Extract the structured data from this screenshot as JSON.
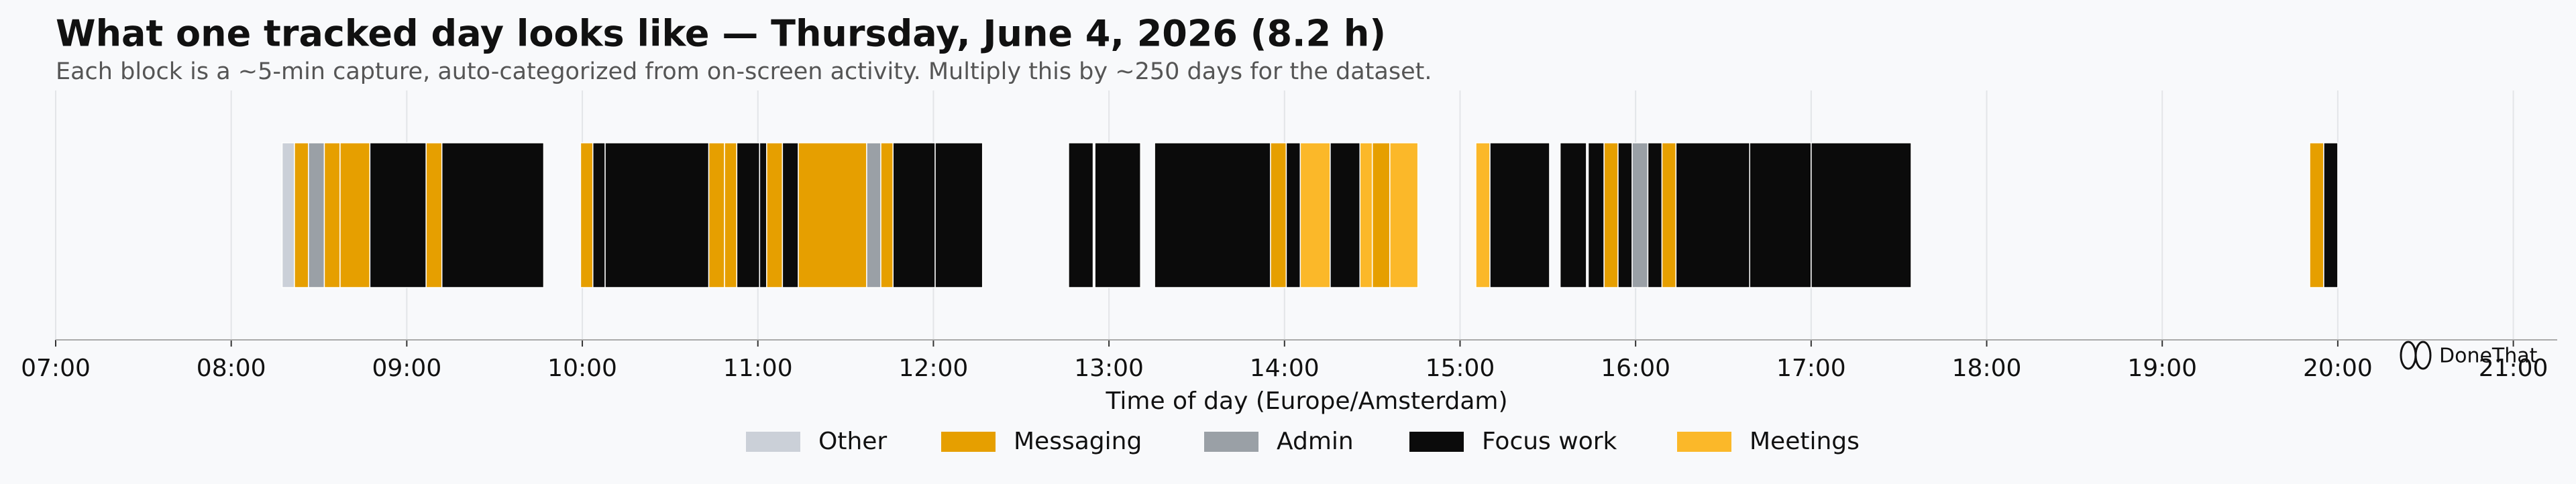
{
  "chart_data": {
    "type": "timeline",
    "title": "What one tracked day looks like — Thursday, June 4, 2026 (8.2 h)",
    "subtitle": "Each block is a ~5-min capture, auto-categorized from on-screen activity. Multiply this by ~250 days for the dataset.",
    "x_label": "Time of day (Europe/Amsterdam)",
    "watermark": "DoneThat",
    "xlim": [
      7,
      21.25
    ],
    "xticks": [
      {
        "value": 7,
        "label": "07:00"
      },
      {
        "value": 8,
        "label": "08:00"
      },
      {
        "value": 9,
        "label": "09:00"
      },
      {
        "value": 10,
        "label": "10:00"
      },
      {
        "value": 11,
        "label": "11:00"
      },
      {
        "value": 12,
        "label": "12:00"
      },
      {
        "value": 13,
        "label": "13:00"
      },
      {
        "value": 14,
        "label": "14:00"
      },
      {
        "value": 15,
        "label": "15:00"
      },
      {
        "value": 16,
        "label": "16:00"
      },
      {
        "value": 17,
        "label": "17:00"
      },
      {
        "value": 18,
        "label": "18:00"
      },
      {
        "value": 19,
        "label": "19:00"
      },
      {
        "value": 20,
        "label": "20:00"
      },
      {
        "value": 21,
        "label": "21:00"
      }
    ],
    "grid": true,
    "legend": "bottom",
    "series": [
      {
        "name": "Other",
        "color": "#cbd0d8",
        "values": [
          [
            8.29,
            8.36
          ]
        ]
      },
      {
        "name": "Messaging",
        "color": "#e69f00",
        "values": [
          [
            8.36,
            8.44
          ],
          [
            8.53,
            8.62
          ],
          [
            8.62,
            8.79
          ],
          [
            9.11,
            9.2
          ],
          [
            9.99,
            10.06
          ],
          [
            10.72,
            10.81
          ],
          [
            10.81,
            10.88
          ],
          [
            11.05,
            11.14
          ],
          [
            11.23,
            11.62
          ],
          [
            11.7,
            11.77
          ],
          [
            13.92,
            14.01
          ],
          [
            14.5,
            14.6
          ],
          [
            15.82,
            15.9
          ],
          [
            16.15,
            16.23
          ],
          [
            19.84,
            19.92
          ]
        ]
      },
      {
        "name": "Admin",
        "color": "#9aa0a6",
        "values": [
          [
            8.44,
            8.53
          ],
          [
            11.62,
            11.7
          ],
          [
            15.98,
            16.07
          ]
        ]
      },
      {
        "name": "Focus work",
        "color": "#0b0b0b",
        "values": [
          [
            8.79,
            9.11
          ],
          [
            9.2,
            9.78
          ],
          [
            10.06,
            10.13
          ],
          [
            10.13,
            10.72
          ],
          [
            10.88,
            11.01
          ],
          [
            11.01,
            11.05
          ],
          [
            11.14,
            11.23
          ],
          [
            11.77,
            12.01
          ],
          [
            12.01,
            12.28
          ],
          [
            12.77,
            12.91
          ],
          [
            12.92,
            13.18
          ],
          [
            13.26,
            13.92
          ],
          [
            14.01,
            14.09
          ],
          [
            14.26,
            14.43
          ],
          [
            15.17,
            15.51
          ],
          [
            15.57,
            15.72
          ],
          [
            15.73,
            15.82
          ],
          [
            15.9,
            15.98
          ],
          [
            16.07,
            16.15
          ],
          [
            16.23,
            16.65
          ],
          [
            16.65,
            17.0
          ],
          [
            17.0,
            17.57
          ],
          [
            19.92,
            20.0
          ]
        ]
      },
      {
        "name": "Meetings",
        "color": "#fbb829",
        "values": [
          [
            14.09,
            14.26
          ],
          [
            14.43,
            14.5
          ],
          [
            14.6,
            14.76
          ],
          [
            15.09,
            15.17
          ]
        ]
      }
    ]
  }
}
